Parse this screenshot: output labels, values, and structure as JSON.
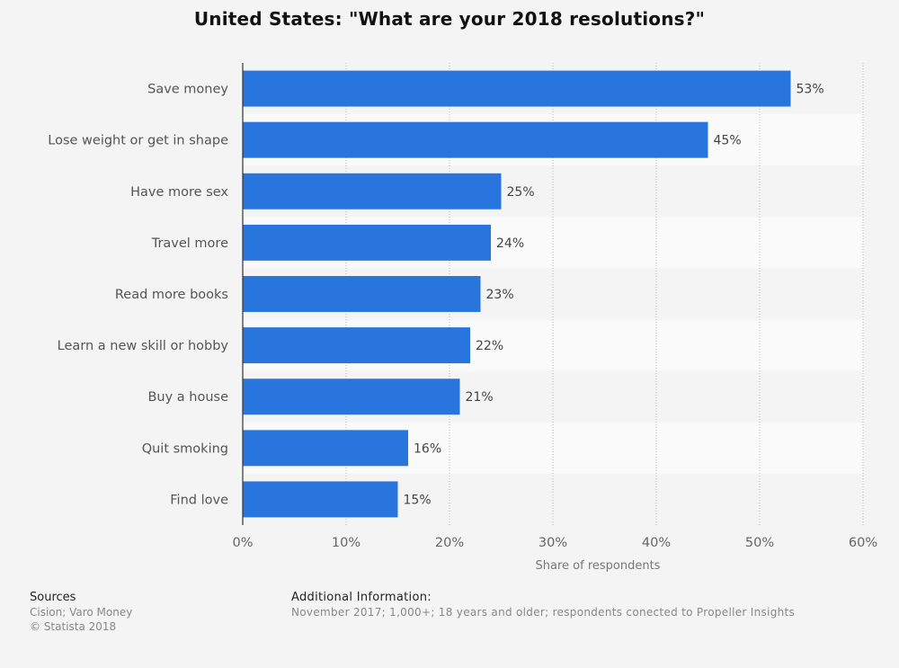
{
  "chart_data": {
    "type": "bar",
    "orientation": "horizontal",
    "title": "United States: \"What are your 2018 resolutions?\"",
    "categories": [
      "Save money",
      "Lose weight or get in shape",
      "Have more sex",
      "Travel more",
      "Read more books",
      "Learn a new skill or hobby",
      "Buy a house",
      "Quit smoking",
      "Find love"
    ],
    "values": [
      53,
      45,
      25,
      24,
      23,
      22,
      21,
      16,
      15
    ],
    "data_labels": [
      "53%",
      "45%",
      "25%",
      "24%",
      "23%",
      "22%",
      "21%",
      "16%",
      "15%"
    ],
    "xlabel": "Share of respondents",
    "ylabel": "",
    "xlim": [
      0,
      60
    ],
    "x_ticks": [
      "0%",
      "10%",
      "20%",
      "30%",
      "40%",
      "50%",
      "60%"
    ],
    "grid": true,
    "bar_color": "#2876dd"
  },
  "footer": {
    "sources_heading": "Sources",
    "sources_line1": "Cision; Varo Money",
    "sources_line2": "© Statista 2018",
    "additional_heading": "Additional Information:",
    "additional_text": "November 2017; 1,000+; 18 years and older; respondents conected to Propeller Insights"
  }
}
